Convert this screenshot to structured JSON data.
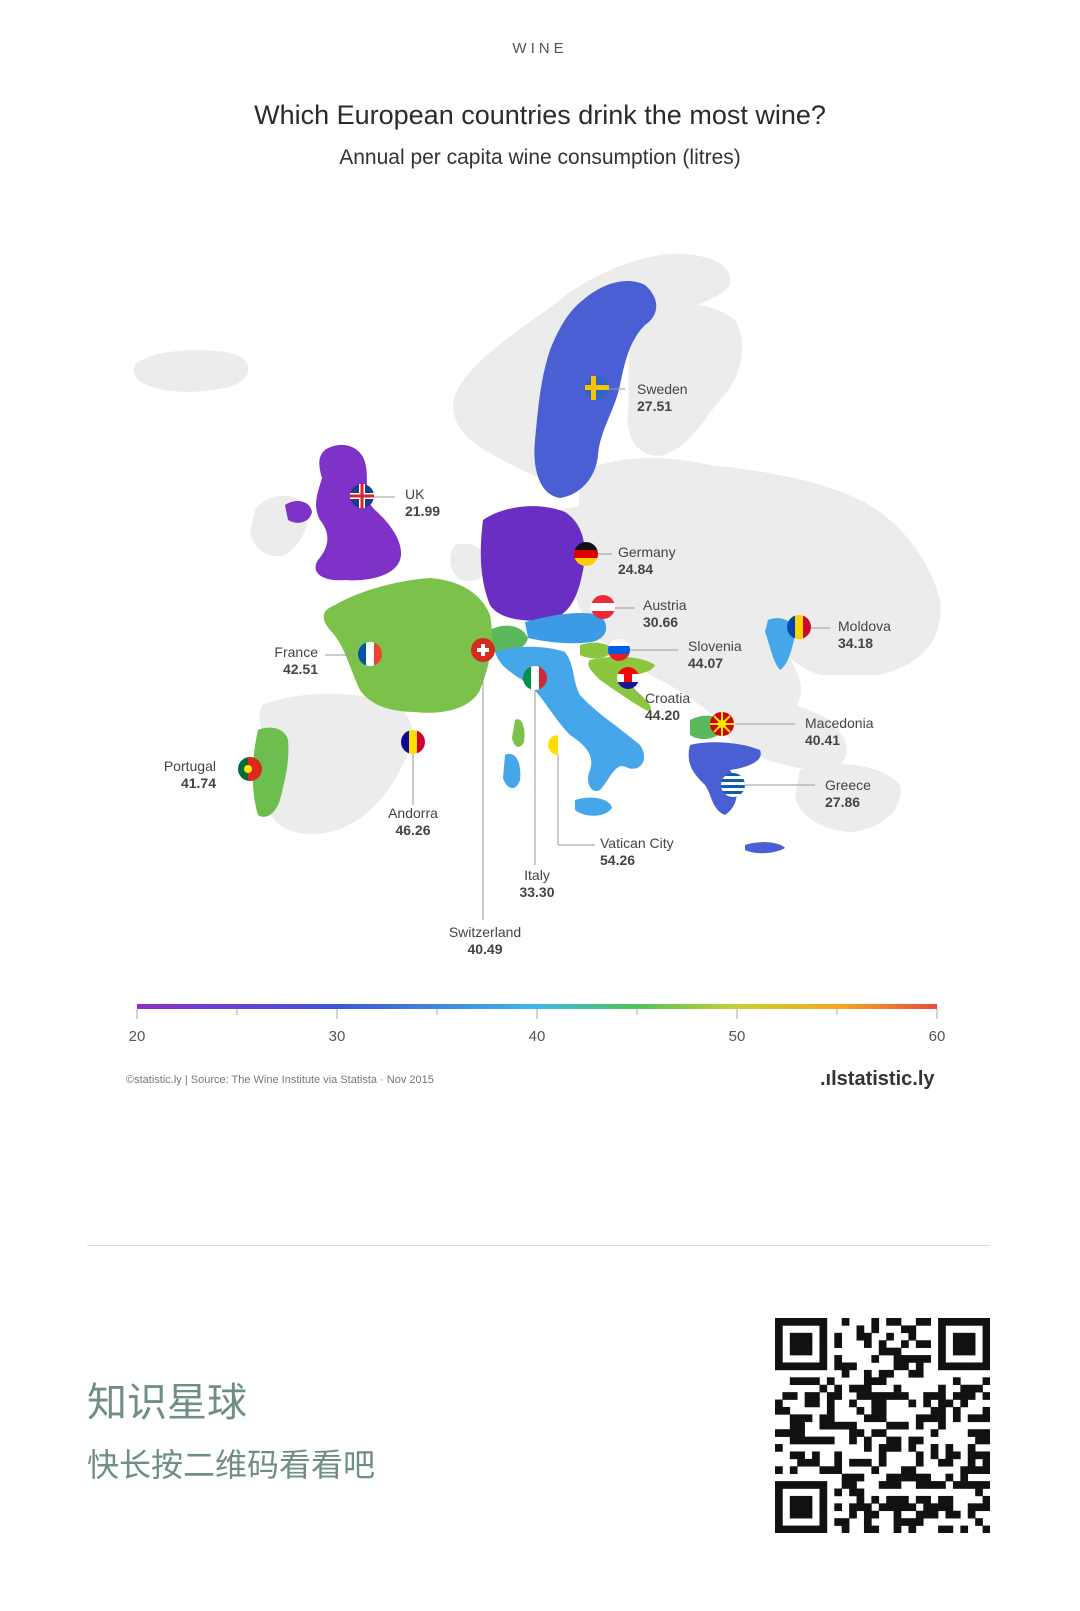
{
  "header": {
    "kicker": "WINE",
    "title": "Which European countries drink the most wine?",
    "subtitle": "Annual per capita wine consumption (litres)"
  },
  "chart_data": {
    "type": "choropleth-map",
    "title": "Which European countries drink the most wine?",
    "subtitle": "Annual per capita wine consumption (litres)",
    "unit": "litres",
    "scale": {
      "min": 20,
      "max": 60,
      "ticks": [
        "20",
        "30",
        "40",
        "50",
        "60"
      ]
    },
    "countries": [
      {
        "name": "Sweden",
        "value": "27.51",
        "color": "#4a5fd3"
      },
      {
        "name": "UK",
        "value": "21.99",
        "color": "#7e32c8"
      },
      {
        "name": "Germany",
        "value": "24.84",
        "color": "#6a2ec4"
      },
      {
        "name": "Austria",
        "value": "30.66",
        "color": "#3b9be4"
      },
      {
        "name": "Moldova",
        "value": "34.18",
        "color": "#45a7ea"
      },
      {
        "name": "France",
        "value": "42.51",
        "color": "#7cc24a"
      },
      {
        "name": "Slovenia",
        "value": "44.07",
        "color": "#8cc63f"
      },
      {
        "name": "Croatia",
        "value": "44.20",
        "color": "#8cc63f"
      },
      {
        "name": "Macedonia",
        "value": "40.41",
        "color": "#5cb85c"
      },
      {
        "name": "Portugal",
        "value": "41.74",
        "color": "#6cbf4e"
      },
      {
        "name": "Greece",
        "value": "27.86",
        "color": "#4a5fd3"
      },
      {
        "name": "Andorra",
        "value": "46.26",
        "color": "#a6ce39"
      },
      {
        "name": "Vatican City",
        "value": "54.26",
        "color": "#f2c436"
      },
      {
        "name": "Italy",
        "value": "33.30",
        "color": "#45a7ea"
      },
      {
        "name": "Switzerland",
        "value": "40.49",
        "color": "#5cb85c"
      }
    ]
  },
  "footer": {
    "source": "©statistic.ly | Source: The Wine Institute via Statista · Nov 2015",
    "brand": ".ılstatistic.ly"
  },
  "promo": {
    "title": "知识星球",
    "subtitle": "快长按二维码看看吧"
  },
  "icons": {
    "qr": "qr-code-icon",
    "flags": "flag-icon"
  }
}
